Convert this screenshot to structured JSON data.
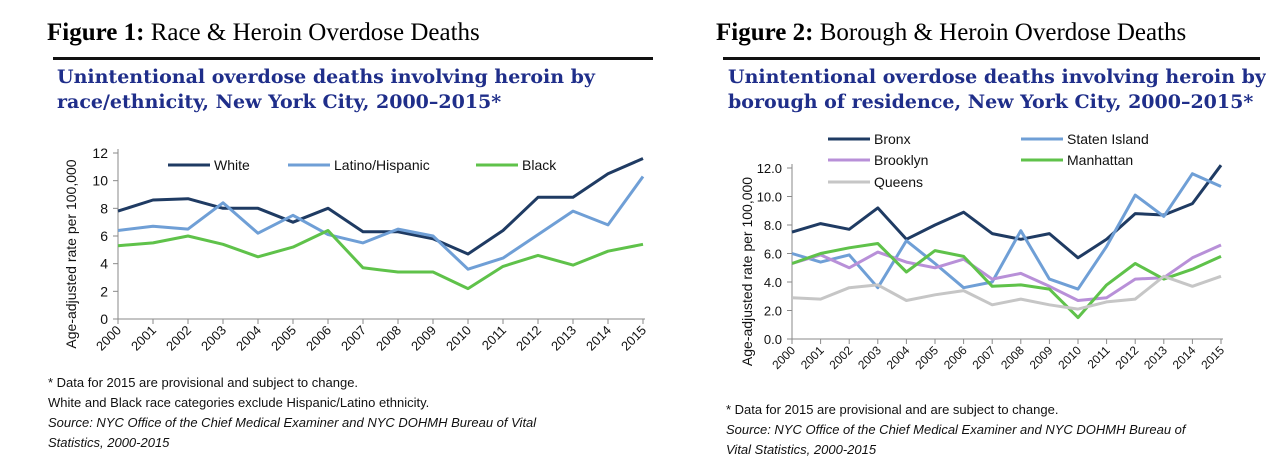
{
  "figures": [
    {
      "heading_bold": "Figure 1:",
      "heading_text": " Race & Heroin Overdose Deaths",
      "footnote": "* Data for 2015 are provisional and subject to change.",
      "note": "White and Black race categories exclude Hispanic/Latino ethnicity.",
      "source_line1": "Source: NYC Office of the Chief Medical Examiner and NYC DOHMH Bureau of Vital",
      "source_line2": "Statistics, 2000-2015"
    },
    {
      "heading_bold": "Figure 2:",
      "heading_text": " Borough & Heroin Overdose Deaths",
      "footnote": "* Data for 2015 are provisional and are subject to change.",
      "source_line1": "Source: NYC Office of the Chief Medical Examiner and NYC DOHMH Bureau of",
      "source_line2": "Vital Statistics, 2000-2015"
    }
  ],
  "chart_data": [
    {
      "type": "line",
      "title_line1": "Unintentional overdose deaths involving heroin by",
      "title_line2": "race/ethnicity, New York City, 2000–2015*",
      "ylabel": "Age-adjusted rate per 100,000",
      "xlabel": "",
      "x": [
        "2000",
        "2001",
        "2002",
        "2003",
        "2004",
        "2005",
        "2006",
        "2007",
        "2008",
        "2009",
        "2010",
        "2011",
        "2012",
        "2013",
        "2014",
        "2015"
      ],
      "ylim": [
        0,
        12
      ],
      "yticks": [
        "0",
        "2",
        "4",
        "6",
        "8",
        "10",
        "12"
      ],
      "grid": false,
      "legend_position": "top",
      "series": [
        {
          "name": "White",
          "color": "#1f3b63",
          "values": [
            7.8,
            8.6,
            8.7,
            8.0,
            8.0,
            7.0,
            8.0,
            6.3,
            6.3,
            5.8,
            4.7,
            6.4,
            8.8,
            8.8,
            10.5,
            11.6
          ]
        },
        {
          "name": "Latino/Hispanic",
          "color": "#6f9fd6",
          "values": [
            6.4,
            6.7,
            6.5,
            8.4,
            6.2,
            7.5,
            6.1,
            5.5,
            6.5,
            6.0,
            3.6,
            4.4,
            6.1,
            7.8,
            6.8,
            10.3
          ]
        },
        {
          "name": "Black",
          "color": "#5fc24a",
          "values": [
            5.3,
            5.5,
            6.0,
            5.4,
            4.5,
            5.2,
            6.4,
            3.7,
            3.4,
            3.4,
            2.2,
            3.8,
            4.6,
            3.9,
            4.9,
            5.4
          ]
        }
      ]
    },
    {
      "type": "line",
      "title_line1": "Unintentional overdose deaths involving heroin by",
      "title_line2": "borough of residence, New York City, 2000–2015*",
      "ylabel": "Age-adjusted rate per 100,000",
      "xlabel": "",
      "x": [
        "2000",
        "2001",
        "2002",
        "2003",
        "2004",
        "2005",
        "2006",
        "2007",
        "2008",
        "2009",
        "2010",
        "2011",
        "2012",
        "2013",
        "2014",
        "2015"
      ],
      "ylim": [
        0,
        12
      ],
      "yticks": [
        "0.0",
        "2.0",
        "4.0",
        "6.0",
        "8.0",
        "10.0",
        "12.0"
      ],
      "grid": false,
      "legend_position": "top-left",
      "series": [
        {
          "name": "Bronx",
          "color": "#1f3b63",
          "values": [
            7.5,
            8.1,
            7.7,
            9.2,
            7.0,
            8.0,
            8.9,
            7.4,
            7.0,
            7.4,
            5.7,
            7.0,
            8.8,
            8.7,
            9.5,
            12.2
          ]
        },
        {
          "name": "Staten Island",
          "color": "#6f9fd6",
          "values": [
            6.0,
            5.4,
            5.9,
            3.6,
            6.9,
            5.3,
            3.6,
            4.0,
            7.6,
            4.2,
            3.5,
            6.5,
            10.1,
            8.6,
            11.6,
            10.7
          ]
        },
        {
          "name": "Brooklyn",
          "color": "#b890d8",
          "values": [
            5.3,
            5.9,
            5.0,
            6.1,
            5.4,
            5.0,
            5.6,
            4.2,
            4.6,
            3.7,
            2.7,
            2.9,
            4.2,
            4.3,
            5.7,
            6.6
          ]
        },
        {
          "name": "Manhattan",
          "color": "#5fc24a",
          "values": [
            5.3,
            6.0,
            6.4,
            6.7,
            4.7,
            6.2,
            5.8,
            3.7,
            3.8,
            3.5,
            1.5,
            3.8,
            5.3,
            4.2,
            4.9,
            5.8
          ]
        },
        {
          "name": "Queens",
          "color": "#c6c6c6",
          "values": [
            2.9,
            2.8,
            3.6,
            3.8,
            2.7,
            3.1,
            3.4,
            2.4,
            2.8,
            2.4,
            2.1,
            2.6,
            2.8,
            4.4,
            3.7,
            4.4
          ]
        }
      ]
    }
  ]
}
